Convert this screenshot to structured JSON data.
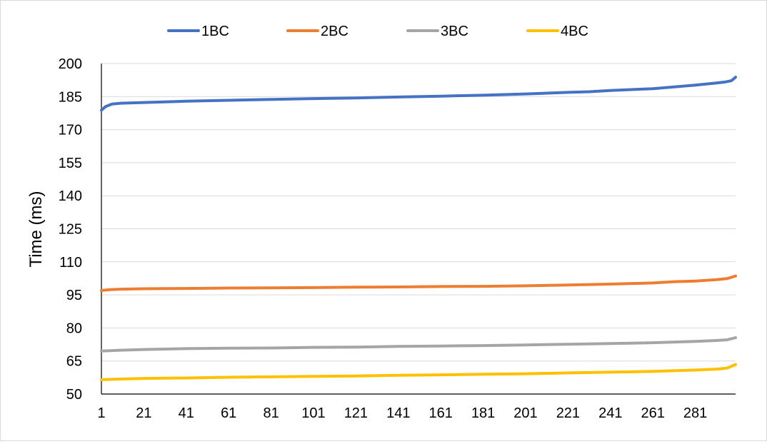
{
  "chart_data": {
    "type": "line",
    "title": "",
    "xlabel": "",
    "ylabel": "Time (ms)",
    "x_range": [
      1,
      300
    ],
    "xlim": [
      1,
      300
    ],
    "ylim": [
      50,
      200
    ],
    "y_ticks": [
      50,
      65,
      80,
      95,
      110,
      125,
      140,
      155,
      170,
      185,
      200
    ],
    "x_ticks": [
      1,
      21,
      41,
      61,
      81,
      101,
      121,
      141,
      161,
      181,
      201,
      221,
      241,
      261,
      281
    ],
    "grid": "horizontal",
    "legend": "top",
    "series": [
      {
        "name": "1BC",
        "color": "#4472C4",
        "points": [
          [
            1,
            178.8
          ],
          [
            3,
            180.5
          ],
          [
            6,
            181.6
          ],
          [
            10,
            182.0
          ],
          [
            21,
            182.3
          ],
          [
            41,
            182.9
          ],
          [
            61,
            183.3
          ],
          [
            81,
            183.7
          ],
          [
            101,
            184.1
          ],
          [
            121,
            184.4
          ],
          [
            141,
            184.8
          ],
          [
            161,
            185.2
          ],
          [
            181,
            185.6
          ],
          [
            201,
            186.2
          ],
          [
            221,
            186.9
          ],
          [
            231,
            187.2
          ],
          [
            241,
            187.8
          ],
          [
            261,
            188.6
          ],
          [
            281,
            190.2
          ],
          [
            291,
            191.2
          ],
          [
            295,
            191.6
          ],
          [
            298,
            192.2
          ],
          [
            300,
            193.8
          ]
        ]
      },
      {
        "name": "2BC",
        "color": "#ED7D31",
        "points": [
          [
            1,
            97.0
          ],
          [
            5,
            97.4
          ],
          [
            10,
            97.6
          ],
          [
            21,
            97.8
          ],
          [
            41,
            97.9
          ],
          [
            61,
            98.1
          ],
          [
            81,
            98.2
          ],
          [
            101,
            98.3
          ],
          [
            121,
            98.5
          ],
          [
            141,
            98.6
          ],
          [
            161,
            98.8
          ],
          [
            181,
            98.9
          ],
          [
            201,
            99.1
          ],
          [
            221,
            99.5
          ],
          [
            241,
            99.9
          ],
          [
            261,
            100.4
          ],
          [
            271,
            101.0
          ],
          [
            281,
            101.3
          ],
          [
            291,
            101.9
          ],
          [
            296,
            102.4
          ],
          [
            300,
            103.6
          ]
        ]
      },
      {
        "name": "3BC",
        "color": "#A5A5A5",
        "points": [
          [
            1,
            69.5
          ],
          [
            10,
            69.9
          ],
          [
            21,
            70.2
          ],
          [
            41,
            70.6
          ],
          [
            61,
            70.8
          ],
          [
            81,
            70.9
          ],
          [
            101,
            71.2
          ],
          [
            121,
            71.3
          ],
          [
            141,
            71.6
          ],
          [
            161,
            71.8
          ],
          [
            181,
            72.0
          ],
          [
            201,
            72.3
          ],
          [
            221,
            72.6
          ],
          [
            241,
            72.9
          ],
          [
            261,
            73.3
          ],
          [
            281,
            73.9
          ],
          [
            291,
            74.3
          ],
          [
            296,
            74.6
          ],
          [
            300,
            75.6
          ]
        ]
      },
      {
        "name": "4BC",
        "color": "#FFC000",
        "points": [
          [
            1,
            56.5
          ],
          [
            10,
            56.8
          ],
          [
            21,
            57.1
          ],
          [
            41,
            57.3
          ],
          [
            61,
            57.6
          ],
          [
            81,
            57.8
          ],
          [
            101,
            58.0
          ],
          [
            121,
            58.2
          ],
          [
            141,
            58.5
          ],
          [
            161,
            58.7
          ],
          [
            181,
            59.0
          ],
          [
            201,
            59.2
          ],
          [
            221,
            59.6
          ],
          [
            241,
            59.9
          ],
          [
            261,
            60.3
          ],
          [
            281,
            60.9
          ],
          [
            291,
            61.3
          ],
          [
            296,
            61.8
          ],
          [
            300,
            63.4
          ]
        ]
      }
    ]
  }
}
